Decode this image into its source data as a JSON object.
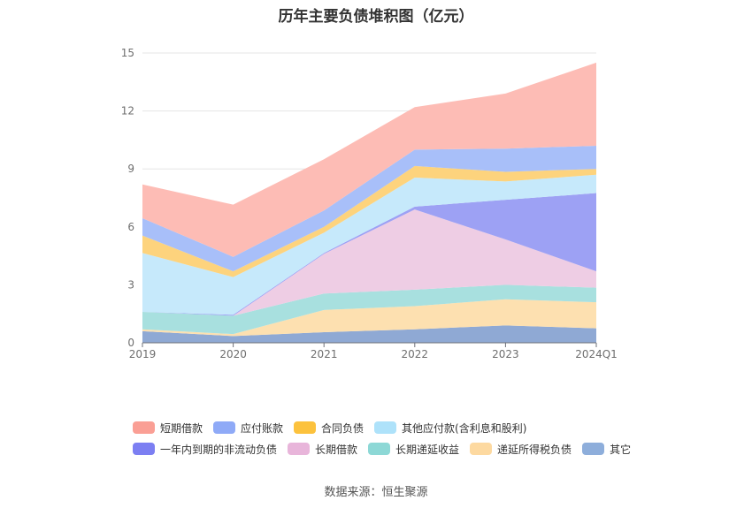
{
  "title": "历年主要负债堆积图（亿元）",
  "source": "数据来源：恒生聚源",
  "chart_data": {
    "type": "area",
    "stacked": true,
    "categories": [
      "2019",
      "2020",
      "2021",
      "2022",
      "2023",
      "2024Q1"
    ],
    "ylim": [
      0,
      15
    ],
    "yticks": [
      0,
      3,
      6,
      9,
      12,
      15
    ],
    "grid": true,
    "legend_position": "bottom",
    "series": [
      {
        "name": "其它",
        "color": "#8fa9d4",
        "values": [
          0.6,
          0.35,
          0.55,
          0.7,
          0.9,
          0.75
        ]
      },
      {
        "name": "递延所得税负债",
        "color": "#fde0b0",
        "values": [
          0.1,
          0.1,
          1.15,
          1.2,
          1.35,
          1.35
        ]
      },
      {
        "name": "长期递延收益",
        "color": "#a8e0df",
        "values": [
          0.9,
          0.95,
          0.85,
          0.85,
          0.75,
          0.75
        ]
      },
      {
        "name": "长期借款",
        "color": "#eecde4",
        "values": [
          0.0,
          0.0,
          2.05,
          4.15,
          2.35,
          0.85
        ]
      },
      {
        "name": "一年内到期的非流动负债",
        "color": "#9da1f4",
        "values": [
          0.0,
          0.05,
          0.05,
          0.15,
          2.05,
          4.05
        ]
      },
      {
        "name": "其他应付款(含利息和股利)",
        "color": "#c6e9fb",
        "values": [
          3.05,
          1.95,
          1.05,
          1.5,
          0.95,
          0.95
        ]
      },
      {
        "name": "合同负债",
        "color": "#fdd37d",
        "values": [
          0.9,
          0.3,
          0.3,
          0.6,
          0.5,
          0.3
        ]
      },
      {
        "name": "应付账款",
        "color": "#a8bff9",
        "values": [
          0.9,
          0.75,
          0.85,
          0.85,
          1.2,
          1.2
        ]
      },
      {
        "name": "短期借款",
        "color": "#fdbcb5",
        "values": [
          1.75,
          2.7,
          2.65,
          2.2,
          2.85,
          4.3
        ]
      }
    ]
  },
  "legend": [
    [
      {
        "label": "短期借款",
        "color": "#fa9f95"
      },
      {
        "label": "应付账款",
        "color": "#8faaf7"
      },
      {
        "label": "合同负债",
        "color": "#fcc23d"
      },
      {
        "label": "其他应付款(含利息和股利)",
        "color": "#aee2fa"
      }
    ],
    [
      {
        "label": "一年内到期的非流动负债",
        "color": "#7c7ff2"
      },
      {
        "label": "长期借款",
        "color": "#e8b5da"
      },
      {
        "label": "长期递延收益",
        "color": "#8dd8d6"
      },
      {
        "label": "递延所得税负债",
        "color": "#fdd9a0"
      },
      {
        "label": "其它",
        "color": "#8eaedb"
      }
    ]
  ]
}
